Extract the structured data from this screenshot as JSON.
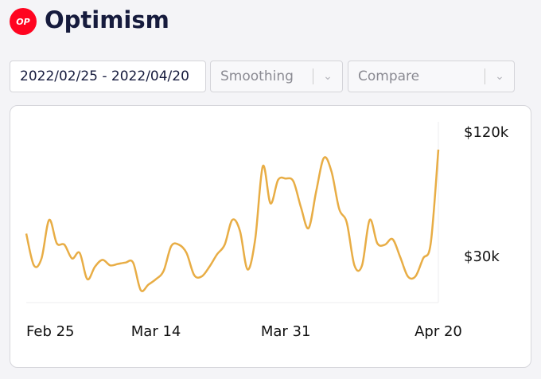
{
  "header": {
    "logo": "OP",
    "title": "Optimism"
  },
  "controls": {
    "date_range": "2022/02/25 - 2022/04/20",
    "smoothing": "Smoothing",
    "compare": "Compare"
  },
  "chart_data": {
    "type": "line",
    "categories": [
      "Feb 25",
      null,
      null,
      null,
      null,
      null,
      null,
      null,
      null,
      null,
      null,
      null,
      null,
      null,
      null,
      null,
      null,
      "Mar 14",
      null,
      null,
      null,
      null,
      null,
      null,
      null,
      null,
      null,
      null,
      null,
      null,
      null,
      null,
      null,
      null,
      "Mar 31",
      null,
      null,
      null,
      null,
      null,
      null,
      null,
      null,
      null,
      null,
      null,
      null,
      null,
      null,
      null,
      null,
      null,
      null,
      null,
      "Apr 20"
    ],
    "series": [
      {
        "name": "Optimism",
        "color": "#e8ad45",
        "values": [
          47000,
          24000,
          29000,
          57000,
          40000,
          39000,
          29000,
          33000,
          14000,
          23000,
          28000,
          24000,
          25000,
          26000,
          26000,
          6000,
          10000,
          14000,
          20000,
          38000,
          39000,
          33000,
          17000,
          16000,
          23000,
          32000,
          39000,
          57000,
          49000,
          21000,
          43000,
          96000,
          69000,
          86000,
          87000,
          85000,
          66000,
          51000,
          78000,
          102000,
          92000,
          65000,
          55000,
          24000,
          24000,
          57000,
          40000,
          39000,
          43000,
          30000,
          16000,
          16000,
          29000,
          40000,
          108000
        ]
      }
    ],
    "ylim": [
      -3000,
      127000
    ],
    "yticks": [
      {
        "value": 30000,
        "label": "$30k"
      },
      {
        "value": 120000,
        "label": "$120k"
      }
    ]
  }
}
